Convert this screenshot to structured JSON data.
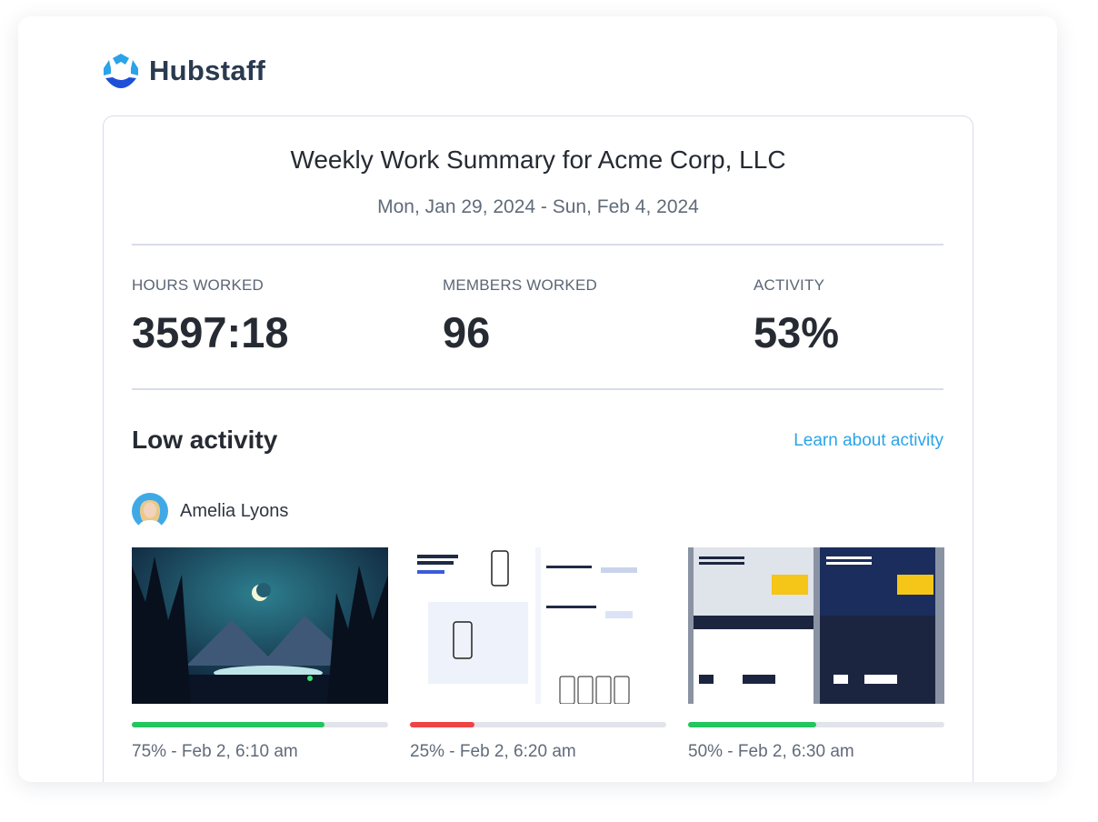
{
  "header": {
    "brand": "Hubstaff"
  },
  "summary": {
    "title": "Weekly Work Summary for Acme Corp, LLC",
    "date_range": "Mon, Jan 29, 2024 - Sun, Feb 4, 2024"
  },
  "stats": [
    {
      "label": "HOURS WORKED",
      "value": "3597:18"
    },
    {
      "label": "MEMBERS WORKED",
      "value": "96"
    },
    {
      "label": "ACTIVITY",
      "value": "53%"
    }
  ],
  "low_activity": {
    "title": "Low activity",
    "link": "Learn about activity",
    "member": "Amelia Lyons",
    "screenshots": [
      {
        "activity": 75,
        "color": "#22c55e",
        "caption": "75% - Feb 2, 6:10 am"
      },
      {
        "activity": 25,
        "color": "#ef4444",
        "caption": "25% - Feb 2, 6:20 am"
      },
      {
        "activity": 50,
        "color": "#22c55e",
        "caption": "50% - Feb 2, 6:30 am"
      }
    ]
  }
}
